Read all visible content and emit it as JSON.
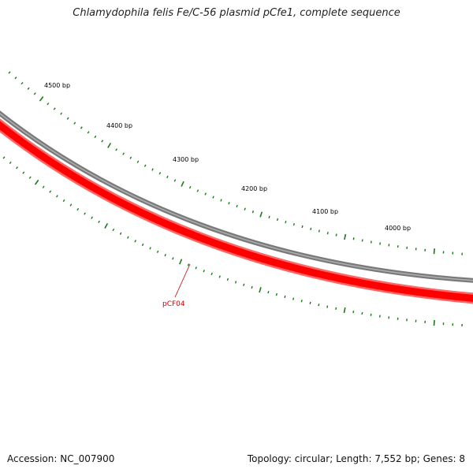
{
  "title": "Chlamydophila felis Fe/C-56 plasmid pCfe1, complete sequence",
  "footer": {
    "accession": "Accession: NC_007900",
    "summary": "Topology: circular; Length: 7,552 bp; Genes: 8"
  },
  "map": {
    "scale_labels": [
      {
        "text": "4500 bp"
      },
      {
        "text": "4400 bp"
      },
      {
        "text": "4300 bp"
      },
      {
        "text": "4200 bp"
      },
      {
        "text": "4100 bp"
      },
      {
        "text": "4000 bp"
      }
    ],
    "gene": {
      "name": "pCF04"
    },
    "colors": {
      "backbone": "#7a7a7a",
      "gene_fill": "#ff0000",
      "gene_edge": "#ff6666",
      "tick": "#1a7a1a",
      "gene_label": "#cc0000"
    }
  }
}
